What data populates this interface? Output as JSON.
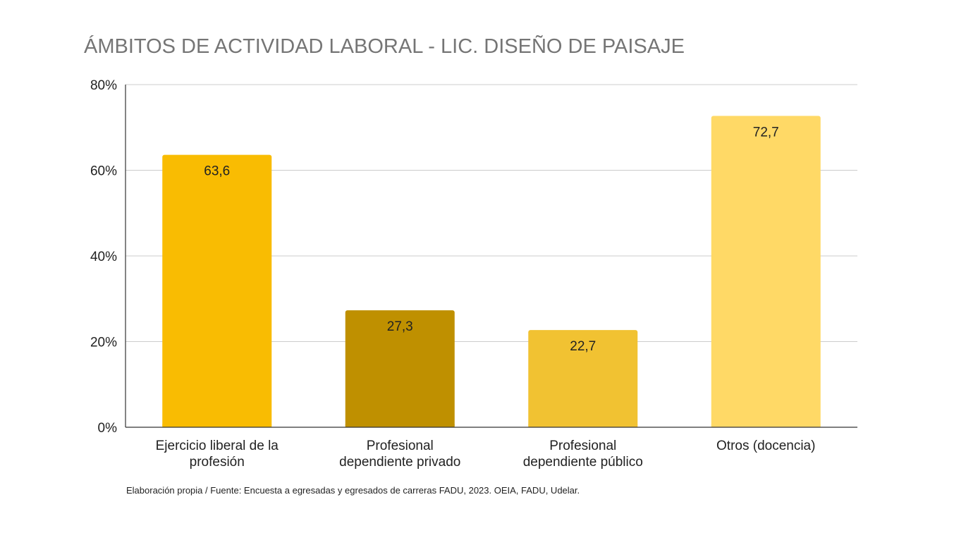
{
  "chart_data": {
    "type": "bar",
    "title": "ÁMBITOS DE ACTIVIDAD LABORAL - LIC. DISEÑO DE PAISAJE",
    "xlabel": "",
    "ylabel": "",
    "categories": [
      [
        "Ejercicio liberal de la",
        "profesión"
      ],
      [
        "Profesional",
        "dependiente privado"
      ],
      [
        "Profesional",
        "dependiente público"
      ],
      [
        "Otros (docencia)"
      ]
    ],
    "values": [
      63.6,
      27.3,
      22.7,
      72.7
    ],
    "value_labels": [
      "63,6",
      "27,3",
      "22,7",
      "72,7"
    ],
    "bar_colors": [
      "#f9bc02",
      "#bf9000",
      "#f1c232",
      "#ffd966"
    ],
    "ylim": [
      0,
      80
    ],
    "yticks": [
      {
        "value": 0,
        "label": "0%"
      },
      {
        "value": 20,
        "label": "20%"
      },
      {
        "value": 40,
        "label": "40%"
      },
      {
        "value": 60,
        "label": "60%"
      },
      {
        "value": 80,
        "label": "80%"
      }
    ],
    "grid": true,
    "legend": "none"
  },
  "source_note": "Elaboración propia / Fuente: Encuesta a egresadas y egresados de carreras FADU, 2023. OEIA, FADU, Udelar."
}
